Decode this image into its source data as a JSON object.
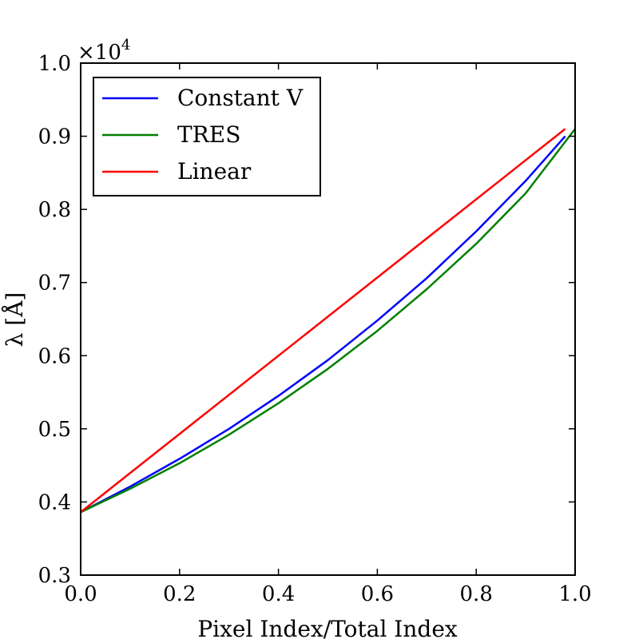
{
  "chart_data": {
    "type": "line",
    "xlabel": "Pixel Index/Total Index",
    "ylabel": "λ [Å]",
    "offset_text": "×10",
    "offset_exponent": "4",
    "xlim": [
      0.0,
      1.0
    ],
    "ylim": [
      0.3,
      1.0
    ],
    "x_ticks": [
      0.0,
      0.2,
      0.4,
      0.6,
      0.8,
      1.0
    ],
    "y_ticks": [
      0.3,
      0.4,
      0.5,
      0.6,
      0.7,
      0.8,
      0.9,
      1.0
    ],
    "x_tick_labels": [
      "0.0",
      "0.2",
      "0.4",
      "0.6",
      "0.8",
      "1.0"
    ],
    "y_tick_labels": [
      "0.3",
      "0.4",
      "0.5",
      "0.6",
      "0.7",
      "0.8",
      "0.9",
      "1.0"
    ],
    "grid": false,
    "legend_position": "top-left",
    "series": [
      {
        "name": "Constant V",
        "color": "#0000ff",
        "x": [
          0.0,
          0.1,
          0.2,
          0.3,
          0.4,
          0.5,
          0.6,
          0.7,
          0.8,
          0.9,
          0.98
        ],
        "y": [
          0.386,
          0.421,
          0.459,
          0.5,
          0.545,
          0.594,
          0.648,
          0.706,
          0.77,
          0.839,
          0.9
        ]
      },
      {
        "name": "TRES",
        "color": "#008000",
        "x": [
          0.0,
          0.1,
          0.2,
          0.3,
          0.4,
          0.5,
          0.6,
          0.7,
          0.8,
          0.9,
          1.0
        ],
        "y": [
          0.386,
          0.418,
          0.453,
          0.492,
          0.535,
          0.582,
          0.634,
          0.691,
          0.753,
          0.822,
          0.91
        ]
      },
      {
        "name": "Linear",
        "color": "#ff0000",
        "x": [
          0.0,
          0.98
        ],
        "y": [
          0.386,
          0.91
        ]
      }
    ]
  }
}
